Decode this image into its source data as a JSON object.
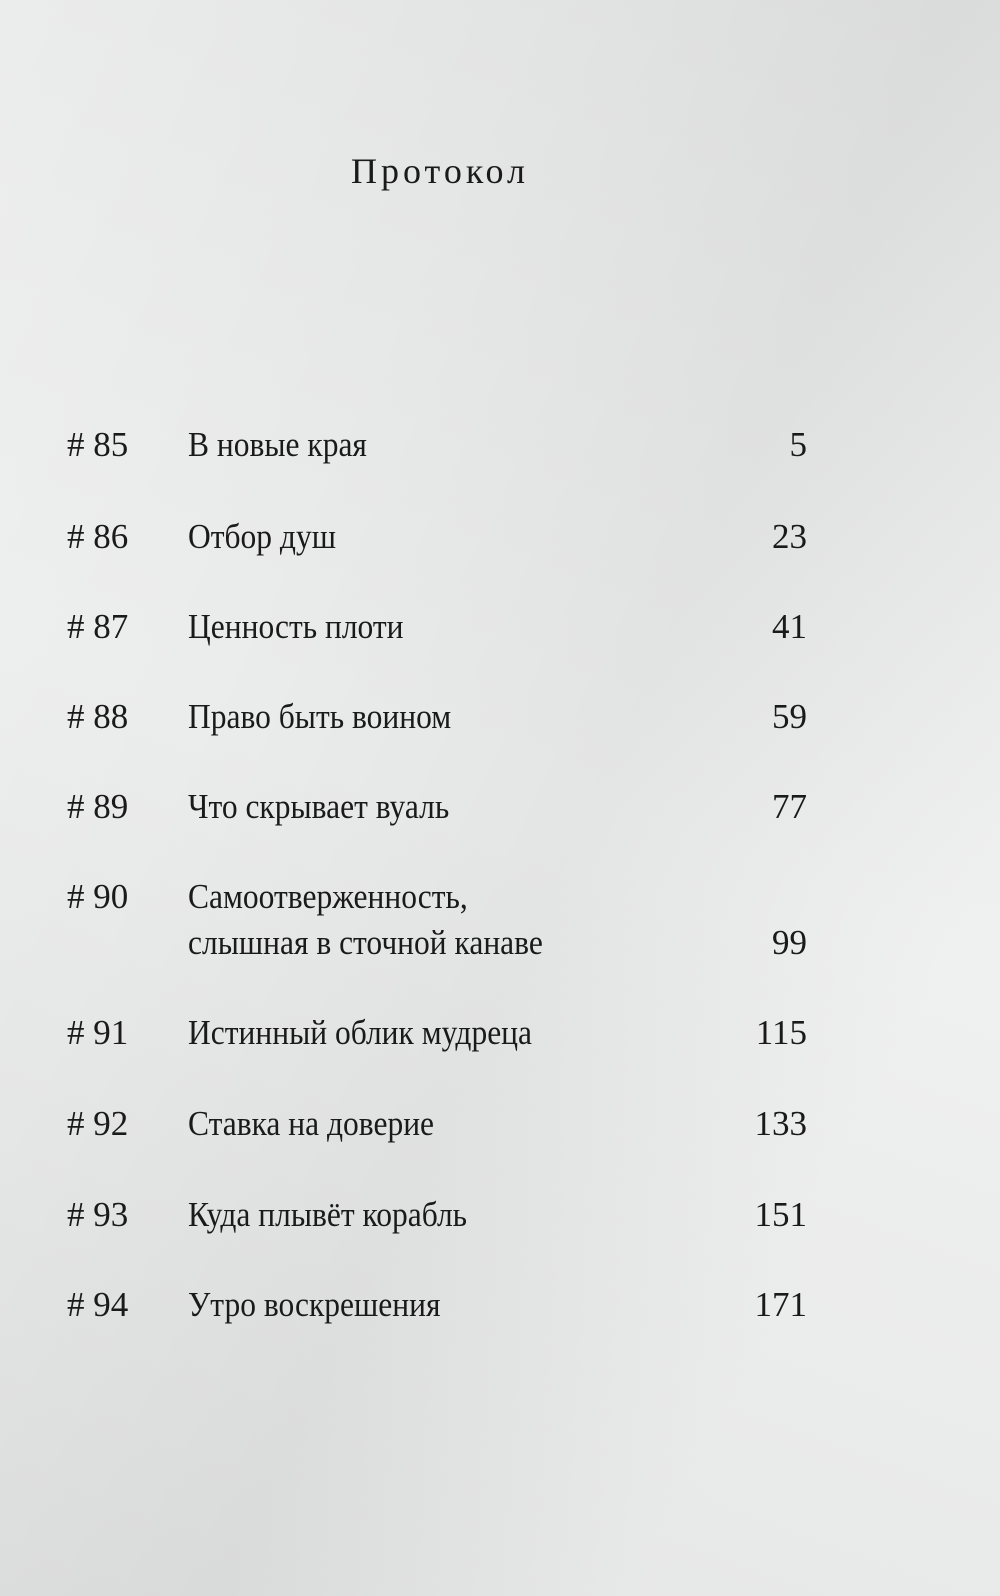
{
  "title": "Протокол",
  "entries": [
    {
      "number": "# 85",
      "lines": [
        "В новые края"
      ],
      "page": "5"
    },
    {
      "number": "# 86",
      "lines": [
        "Отбор душ"
      ],
      "page": "23"
    },
    {
      "number": "# 87",
      "lines": [
        "Ценность плоти"
      ],
      "page": "41"
    },
    {
      "number": "# 88",
      "lines": [
        "Право быть воином"
      ],
      "page": "59"
    },
    {
      "number": "# 89",
      "lines": [
        "Что скрывает вуаль"
      ],
      "page": "77"
    },
    {
      "number": "# 90",
      "lines": [
        "Самоотверженность,",
        "слышная в сточной канаве"
      ],
      "page": "99"
    },
    {
      "number": "# 91",
      "lines": [
        "Истинный облик мудреца"
      ],
      "page": "115"
    },
    {
      "number": "# 92",
      "lines": [
        "Ставка на доверие"
      ],
      "page": "133"
    },
    {
      "number": "# 93",
      "lines": [
        "Куда плывёт корабль"
      ],
      "page": "151"
    },
    {
      "number": "# 94",
      "lines": [
        "Утро воскрешения"
      ],
      "page": "171"
    }
  ]
}
